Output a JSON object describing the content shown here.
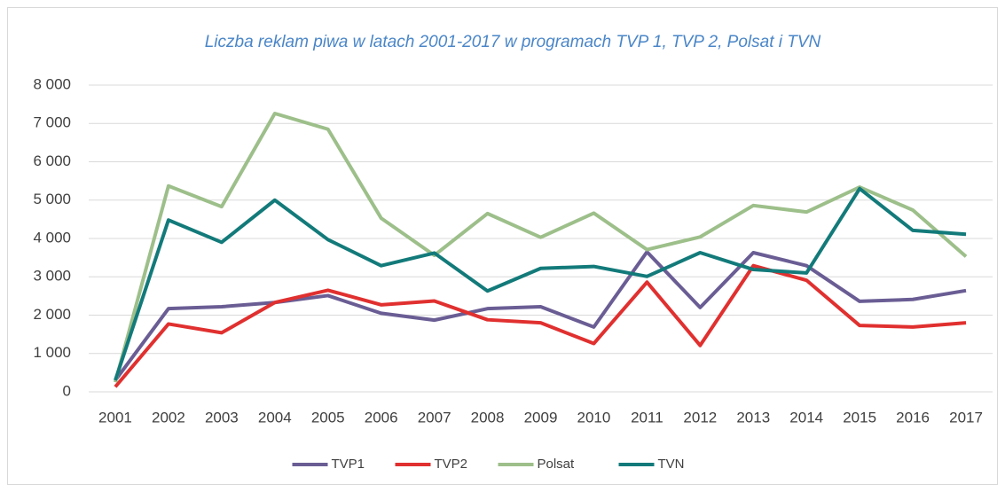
{
  "chart_data": {
    "type": "line",
    "title": "Liczba reklam piwa w latach 2001-2017 w programach TVP 1, TVP 2, Polsat i TVN",
    "categories": [
      "2001",
      "2002",
      "2003",
      "2004",
      "2005",
      "2006",
      "2007",
      "2008",
      "2009",
      "2010",
      "2011",
      "2012",
      "2013",
      "2014",
      "2015",
      "2016",
      "2017"
    ],
    "series": [
      {
        "name": "TVP1",
        "color": "#6a5d94",
        "values": [
          300,
          2170,
          2220,
          2330,
          2510,
          2050,
          1870,
          2170,
          2220,
          1690,
          3650,
          2200,
          3630,
          3290,
          2360,
          2410,
          2640
        ]
      },
      {
        "name": "TVP2",
        "color": "#e0302f",
        "values": [
          130,
          1770,
          1540,
          2330,
          2650,
          2270,
          2370,
          1880,
          1800,
          1260,
          2860,
          1210,
          3290,
          2910,
          1730,
          1690,
          1800
        ]
      },
      {
        "name": "Polsat",
        "color": "#9dbf8a",
        "values": [
          250,
          5370,
          4830,
          7260,
          6850,
          4530,
          3560,
          4650,
          4030,
          4660,
          3710,
          4040,
          4860,
          4690,
          5340,
          4740,
          3530
        ]
      },
      {
        "name": "TVN",
        "color": "#137a7a",
        "values": [
          300,
          4480,
          3900,
          5000,
          3970,
          3290,
          3620,
          2630,
          3220,
          3270,
          3010,
          3630,
          3190,
          3100,
          5300,
          4210,
          4110
        ]
      }
    ],
    "ylim": [
      0,
      8000
    ],
    "yticks": [
      0,
      {
        "value": 1000,
        "label": "1 000"
      },
      {
        "value": 2000,
        "label": "2 000"
      },
      {
        "value": 3000,
        "label": "3 000"
      },
      {
        "value": 4000,
        "label": "4 000"
      },
      {
        "value": 5000,
        "label": "5 000"
      },
      {
        "value": 6000,
        "label": "6 000"
      },
      {
        "value": 7000,
        "label": "7 000"
      },
      {
        "value": 8000,
        "label": "8 000"
      }
    ],
    "grid": true,
    "legend": "bottom"
  }
}
